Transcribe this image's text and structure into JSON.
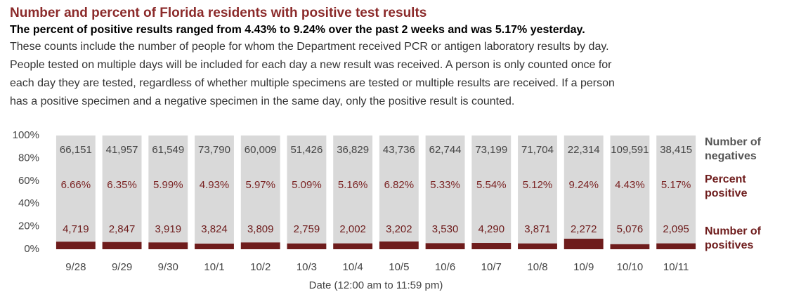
{
  "chart_data": {
    "type": "bar",
    "title": "Number and percent of Florida residents with positive test results",
    "subtitle": "The percent of positive results ranged from 4.43% to 9.24% over the past 2 weeks and was 5.17% yesterday.",
    "description": [
      "These counts include the number of people for whom the Department received PCR or antigen laboratory results by day.",
      "People tested on multiple days will be included for each day a new result was received. A person is only counted once for",
      "each day they are tested, regardless of whether multiple specimens are tested or multiple results are received. If a person",
      "has a positive specimen and a negative specimen in the same day, only the positive result is counted."
    ],
    "x_label": "Date (12:00 am to 11:59 pm)",
    "categories": [
      "9/28",
      "9/29",
      "9/30",
      "10/1",
      "10/2",
      "10/3",
      "10/4",
      "10/5",
      "10/6",
      "10/7",
      "10/8",
      "10/9",
      "10/10",
      "10/11"
    ],
    "series": [
      {
        "name": "Number of positives",
        "color": "#6e1c1c",
        "values": [
          4719,
          2847,
          3919,
          3824,
          3809,
          2759,
          2002,
          3202,
          3530,
          4290,
          3871,
          2272,
          5076,
          2095
        ],
        "value_labels": [
          "4,719",
          "2,847",
          "3,919",
          "3,824",
          "3,809",
          "2,759",
          "2,002",
          "3,202",
          "3,530",
          "4,290",
          "3,871",
          "2,272",
          "5,076",
          "2,095"
        ]
      },
      {
        "name": "Percent positive",
        "color": "#7b2424",
        "values": [
          6.66,
          6.35,
          5.99,
          4.93,
          5.97,
          5.09,
          5.16,
          6.82,
          5.33,
          5.54,
          5.12,
          9.24,
          4.43,
          5.17
        ],
        "value_labels": [
          "6.66%",
          "6.35%",
          "5.99%",
          "4.93%",
          "5.97%",
          "5.09%",
          "5.16%",
          "6.82%",
          "5.33%",
          "5.54%",
          "5.12%",
          "9.24%",
          "4.43%",
          "5.17%"
        ]
      },
      {
        "name": "Number of negatives",
        "color": "#d9d9d9",
        "values": [
          66151,
          41957,
          61549,
          73790,
          60009,
          51426,
          36829,
          43736,
          62744,
          73199,
          71704,
          22314,
          109591,
          38415
        ],
        "value_labels": [
          "66,151",
          "41,957",
          "61,549",
          "73,790",
          "60,009",
          "51,426",
          "36,829",
          "43,736",
          "62,744",
          "73,199",
          "71,704",
          "22,314",
          "109,591",
          "38,415"
        ]
      }
    ],
    "ylim": [
      0,
      100
    ],
    "yticks": [
      {
        "value": 0,
        "label": "0%"
      },
      {
        "value": 20,
        "label": "20%"
      },
      {
        "value": 40,
        "label": "40%"
      },
      {
        "value": 60,
        "label": "60%"
      },
      {
        "value": 80,
        "label": "80%"
      },
      {
        "value": 100,
        "label": "100%"
      }
    ]
  }
}
